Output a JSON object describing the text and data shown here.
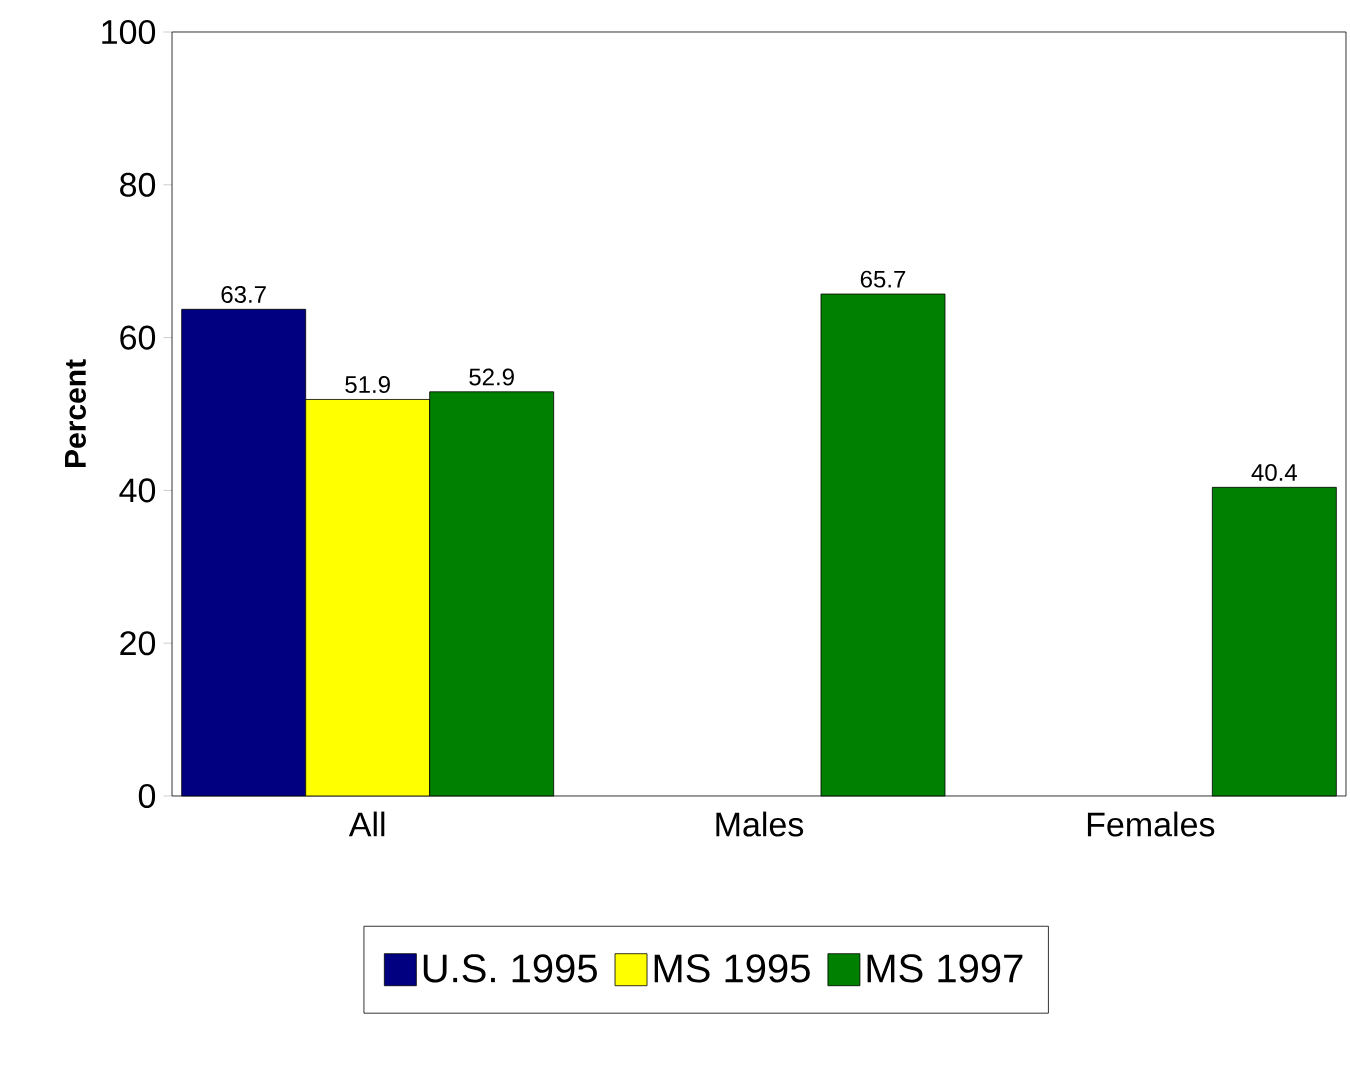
{
  "chart_data": {
    "type": "bar",
    "ylabel": "Percent",
    "categories": [
      "All",
      "Males",
      "Females"
    ],
    "series": [
      {
        "name": "U.S. 1995",
        "color": "#000080",
        "values": [
          63.7,
          null,
          null
        ]
      },
      {
        "name": "MS 1995",
        "color": "#ffff00",
        "values": [
          51.9,
          null,
          null
        ]
      },
      {
        "name": "MS 1997",
        "color": "#008000",
        "values": [
          52.9,
          65.7,
          40.4
        ]
      }
    ],
    "ylim": [
      0,
      100
    ],
    "yticks": [
      0,
      20,
      40,
      60,
      80,
      100
    ],
    "data_labels": true,
    "grid": false,
    "legend": "bottom"
  }
}
